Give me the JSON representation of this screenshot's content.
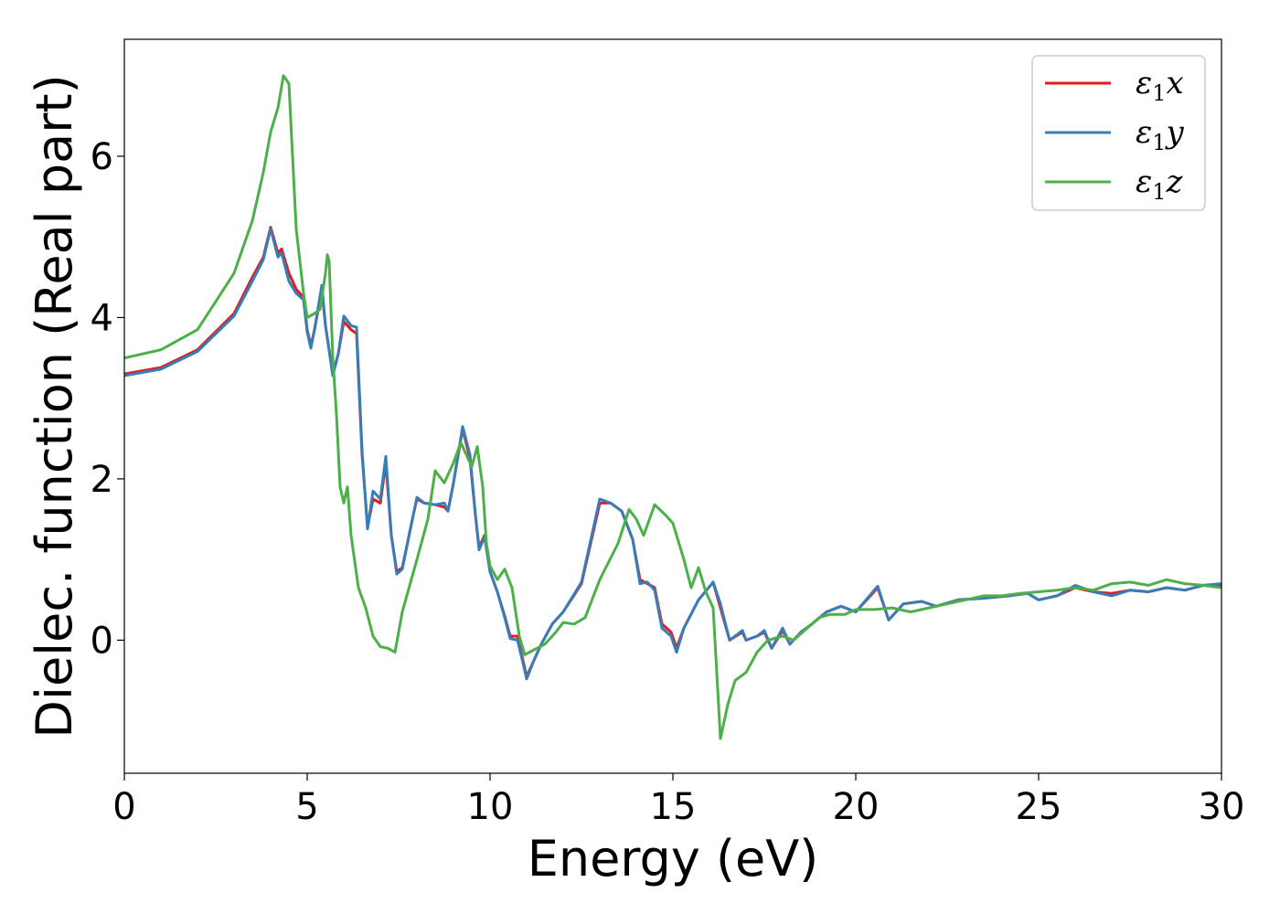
{
  "chart_data": {
    "type": "line",
    "xlabel": "Energy (eV)",
    "ylabel": "Dielec. function (Real part)",
    "xlim": [
      0,
      30
    ],
    "ylim": [
      -1.65,
      7.45
    ],
    "xticks": [
      0,
      5,
      10,
      15,
      20,
      25,
      30
    ],
    "yticks": [
      0,
      2,
      4,
      6
    ],
    "grid": false,
    "legend_position": "top-right",
    "series": [
      {
        "name": "ε1x",
        "color": "#e41a1c",
        "points": [
          [
            0,
            3.3
          ],
          [
            1,
            3.38
          ],
          [
            2,
            3.6
          ],
          [
            3,
            4.05
          ],
          [
            3.5,
            4.5
          ],
          [
            3.8,
            4.75
          ],
          [
            4.0,
            5.12
          ],
          [
            4.2,
            4.8
          ],
          [
            4.3,
            4.85
          ],
          [
            4.5,
            4.55
          ],
          [
            4.7,
            4.35
          ],
          [
            4.9,
            4.25
          ],
          [
            5.0,
            3.85
          ],
          [
            5.1,
            3.65
          ],
          [
            5.2,
            3.85
          ],
          [
            5.4,
            4.35
          ],
          [
            5.5,
            3.9
          ],
          [
            5.7,
            3.3
          ],
          [
            5.85,
            3.55
          ],
          [
            6.0,
            3.95
          ],
          [
            6.2,
            3.85
          ],
          [
            6.35,
            3.8
          ],
          [
            6.5,
            2.3
          ],
          [
            6.65,
            1.4
          ],
          [
            6.8,
            1.75
          ],
          [
            7.0,
            1.7
          ],
          [
            7.15,
            2.2
          ],
          [
            7.3,
            1.3
          ],
          [
            7.45,
            0.85
          ],
          [
            7.6,
            0.9
          ],
          [
            7.9,
            1.55
          ],
          [
            8.0,
            1.75
          ],
          [
            8.2,
            1.7
          ],
          [
            8.5,
            1.68
          ],
          [
            8.75,
            1.65
          ],
          [
            8.85,
            1.6
          ],
          [
            9.0,
            1.95
          ],
          [
            9.25,
            2.62
          ],
          [
            9.45,
            2.25
          ],
          [
            9.6,
            1.55
          ],
          [
            9.7,
            1.15
          ],
          [
            9.85,
            1.3
          ],
          [
            10.0,
            0.85
          ],
          [
            10.2,
            0.6
          ],
          [
            10.4,
            0.3
          ],
          [
            10.55,
            0.05
          ],
          [
            10.75,
            0.05
          ],
          [
            10.9,
            -0.25
          ],
          [
            11.0,
            -0.45
          ],
          [
            11.2,
            -0.25
          ],
          [
            11.4,
            -0.05
          ],
          [
            11.7,
            0.2
          ],
          [
            12.0,
            0.35
          ],
          [
            12.5,
            0.7
          ],
          [
            13.0,
            1.7
          ],
          [
            13.3,
            1.7
          ],
          [
            13.6,
            1.6
          ],
          [
            13.9,
            1.25
          ],
          [
            14.1,
            0.75
          ],
          [
            14.3,
            0.7
          ],
          [
            14.5,
            0.65
          ],
          [
            14.7,
            0.2
          ],
          [
            14.95,
            0.1
          ],
          [
            15.1,
            -0.1
          ],
          [
            15.3,
            0.15
          ],
          [
            15.7,
            0.5
          ],
          [
            16.1,
            0.72
          ],
          [
            16.3,
            0.4
          ],
          [
            16.55,
            0.0
          ],
          [
            16.9,
            0.1
          ],
          [
            17.0,
            0.0
          ],
          [
            17.3,
            0.05
          ],
          [
            17.5,
            0.1
          ],
          [
            17.7,
            -0.1
          ],
          [
            18.0,
            0.12
          ],
          [
            18.2,
            -0.05
          ],
          [
            18.5,
            0.1
          ],
          [
            18.8,
            0.2
          ],
          [
            19.2,
            0.35
          ],
          [
            19.6,
            0.42
          ],
          [
            20.0,
            0.35
          ],
          [
            20.6,
            0.65
          ],
          [
            20.9,
            0.25
          ],
          [
            21.3,
            0.45
          ],
          [
            21.8,
            0.48
          ],
          [
            22.2,
            0.42
          ],
          [
            22.8,
            0.5
          ],
          [
            23.5,
            0.52
          ],
          [
            24.2,
            0.55
          ],
          [
            24.7,
            0.58
          ],
          [
            25.0,
            0.5
          ],
          [
            25.5,
            0.55
          ],
          [
            26.0,
            0.65
          ],
          [
            26.5,
            0.6
          ],
          [
            27.0,
            0.58
          ],
          [
            27.5,
            0.62
          ],
          [
            28.0,
            0.6
          ],
          [
            28.5,
            0.65
          ],
          [
            29.0,
            0.62
          ],
          [
            29.5,
            0.68
          ],
          [
            30.0,
            0.68
          ]
        ]
      },
      {
        "name": "ε1y",
        "color": "#377eb8",
        "points": [
          [
            0,
            3.28
          ],
          [
            1,
            3.36
          ],
          [
            2,
            3.58
          ],
          [
            3,
            4.02
          ],
          [
            3.5,
            4.45
          ],
          [
            3.8,
            4.72
          ],
          [
            4.0,
            5.1
          ],
          [
            4.2,
            4.75
          ],
          [
            4.3,
            4.8
          ],
          [
            4.5,
            4.45
          ],
          [
            4.7,
            4.3
          ],
          [
            4.9,
            4.22
          ],
          [
            5.0,
            3.82
          ],
          [
            5.1,
            3.62
          ],
          [
            5.2,
            3.85
          ],
          [
            5.4,
            4.4
          ],
          [
            5.5,
            3.9
          ],
          [
            5.7,
            3.28
          ],
          [
            5.85,
            3.55
          ],
          [
            6.0,
            4.02
          ],
          [
            6.2,
            3.9
          ],
          [
            6.35,
            3.88
          ],
          [
            6.5,
            2.35
          ],
          [
            6.65,
            1.38
          ],
          [
            6.8,
            1.85
          ],
          [
            7.0,
            1.75
          ],
          [
            7.15,
            2.28
          ],
          [
            7.3,
            1.3
          ],
          [
            7.45,
            0.82
          ],
          [
            7.6,
            0.88
          ],
          [
            7.9,
            1.55
          ],
          [
            8.0,
            1.77
          ],
          [
            8.2,
            1.7
          ],
          [
            8.5,
            1.68
          ],
          [
            8.75,
            1.7
          ],
          [
            8.85,
            1.6
          ],
          [
            9.0,
            1.95
          ],
          [
            9.25,
            2.65
          ],
          [
            9.45,
            2.3
          ],
          [
            9.6,
            1.55
          ],
          [
            9.7,
            1.12
          ],
          [
            9.85,
            1.28
          ],
          [
            10.0,
            0.85
          ],
          [
            10.2,
            0.6
          ],
          [
            10.4,
            0.28
          ],
          [
            10.55,
            0.02
          ],
          [
            10.75,
            0.0
          ],
          [
            10.9,
            -0.28
          ],
          [
            11.0,
            -0.48
          ],
          [
            11.2,
            -0.25
          ],
          [
            11.4,
            -0.05
          ],
          [
            11.7,
            0.2
          ],
          [
            12.0,
            0.35
          ],
          [
            12.5,
            0.72
          ],
          [
            13.0,
            1.75
          ],
          [
            13.3,
            1.7
          ],
          [
            13.6,
            1.6
          ],
          [
            13.9,
            1.25
          ],
          [
            14.1,
            0.7
          ],
          [
            14.3,
            0.72
          ],
          [
            14.5,
            0.62
          ],
          [
            14.7,
            0.15
          ],
          [
            14.95,
            0.05
          ],
          [
            15.1,
            -0.15
          ],
          [
            15.3,
            0.15
          ],
          [
            15.7,
            0.5
          ],
          [
            16.1,
            0.72
          ],
          [
            16.3,
            0.45
          ],
          [
            16.55,
            0.0
          ],
          [
            16.9,
            0.12
          ],
          [
            17.0,
            0.0
          ],
          [
            17.3,
            0.05
          ],
          [
            17.5,
            0.12
          ],
          [
            17.7,
            -0.1
          ],
          [
            18.0,
            0.15
          ],
          [
            18.2,
            -0.05
          ],
          [
            18.5,
            0.1
          ],
          [
            18.8,
            0.2
          ],
          [
            19.2,
            0.35
          ],
          [
            19.6,
            0.42
          ],
          [
            20.0,
            0.35
          ],
          [
            20.6,
            0.67
          ],
          [
            20.9,
            0.25
          ],
          [
            21.3,
            0.45
          ],
          [
            21.8,
            0.48
          ],
          [
            22.2,
            0.42
          ],
          [
            22.8,
            0.5
          ],
          [
            23.5,
            0.52
          ],
          [
            24.2,
            0.55
          ],
          [
            24.7,
            0.58
          ],
          [
            25.0,
            0.5
          ],
          [
            25.5,
            0.55
          ],
          [
            26.0,
            0.68
          ],
          [
            26.5,
            0.6
          ],
          [
            27.0,
            0.55
          ],
          [
            27.5,
            0.62
          ],
          [
            28.0,
            0.6
          ],
          [
            28.5,
            0.65
          ],
          [
            29.0,
            0.62
          ],
          [
            29.5,
            0.68
          ],
          [
            30.0,
            0.7
          ]
        ]
      },
      {
        "name": "ε1z",
        "color": "#4daf4a",
        "points": [
          [
            0,
            3.5
          ],
          [
            1,
            3.6
          ],
          [
            2,
            3.85
          ],
          [
            3,
            4.55
          ],
          [
            3.5,
            5.2
          ],
          [
            3.8,
            5.8
          ],
          [
            4.0,
            6.3
          ],
          [
            4.2,
            6.6
          ],
          [
            4.35,
            7.0
          ],
          [
            4.5,
            6.9
          ],
          [
            4.7,
            5.1
          ],
          [
            4.9,
            4.3
          ],
          [
            5.0,
            4.0
          ],
          [
            5.2,
            4.05
          ],
          [
            5.35,
            4.1
          ],
          [
            5.5,
            4.55
          ],
          [
            5.55,
            4.78
          ],
          [
            5.6,
            4.7
          ],
          [
            5.7,
            3.5
          ],
          [
            5.8,
            2.8
          ],
          [
            5.9,
            1.9
          ],
          [
            6.0,
            1.7
          ],
          [
            6.1,
            1.9
          ],
          [
            6.2,
            1.3
          ],
          [
            6.4,
            0.65
          ],
          [
            6.6,
            0.4
          ],
          [
            6.8,
            0.05
          ],
          [
            7.0,
            -0.08
          ],
          [
            7.2,
            -0.1
          ],
          [
            7.4,
            -0.15
          ],
          [
            7.6,
            0.35
          ],
          [
            8.0,
            1.0
          ],
          [
            8.3,
            1.5
          ],
          [
            8.5,
            2.1
          ],
          [
            8.75,
            1.95
          ],
          [
            9.0,
            2.2
          ],
          [
            9.2,
            2.45
          ],
          [
            9.35,
            2.3
          ],
          [
            9.5,
            2.15
          ],
          [
            9.65,
            2.4
          ],
          [
            9.8,
            1.9
          ],
          [
            9.9,
            1.2
          ],
          [
            10.0,
            0.92
          ],
          [
            10.2,
            0.75
          ],
          [
            10.4,
            0.88
          ],
          [
            10.6,
            0.65
          ],
          [
            10.8,
            0.05
          ],
          [
            10.95,
            -0.18
          ],
          [
            11.2,
            -0.12
          ],
          [
            11.5,
            -0.05
          ],
          [
            11.8,
            0.1
          ],
          [
            12.0,
            0.22
          ],
          [
            12.3,
            0.2
          ],
          [
            12.6,
            0.28
          ],
          [
            13.0,
            0.75
          ],
          [
            13.5,
            1.2
          ],
          [
            13.8,
            1.62
          ],
          [
            14.0,
            1.5
          ],
          [
            14.2,
            1.3
          ],
          [
            14.5,
            1.68
          ],
          [
            14.8,
            1.55
          ],
          [
            15.0,
            1.45
          ],
          [
            15.3,
            1.0
          ],
          [
            15.5,
            0.65
          ],
          [
            15.7,
            0.9
          ],
          [
            15.9,
            0.6
          ],
          [
            16.1,
            0.4
          ],
          [
            16.3,
            -1.22
          ],
          [
            16.5,
            -0.8
          ],
          [
            16.7,
            -0.5
          ],
          [
            17.0,
            -0.4
          ],
          [
            17.3,
            -0.15
          ],
          [
            17.6,
            0.0
          ],
          [
            18.0,
            0.05
          ],
          [
            18.3,
            0.0
          ],
          [
            18.6,
            0.12
          ],
          [
            19.0,
            0.28
          ],
          [
            19.3,
            0.32
          ],
          [
            19.7,
            0.32
          ],
          [
            20.0,
            0.38
          ],
          [
            20.5,
            0.38
          ],
          [
            21.0,
            0.4
          ],
          [
            21.5,
            0.35
          ],
          [
            22.0,
            0.4
          ],
          [
            22.5,
            0.45
          ],
          [
            23.0,
            0.5
          ],
          [
            23.5,
            0.55
          ],
          [
            24.0,
            0.55
          ],
          [
            24.5,
            0.58
          ],
          [
            25.0,
            0.6
          ],
          [
            25.5,
            0.62
          ],
          [
            26.0,
            0.65
          ],
          [
            26.5,
            0.62
          ],
          [
            27.0,
            0.7
          ],
          [
            27.5,
            0.72
          ],
          [
            28.0,
            0.68
          ],
          [
            28.5,
            0.75
          ],
          [
            29.0,
            0.7
          ],
          [
            29.5,
            0.68
          ],
          [
            30.0,
            0.65
          ]
        ]
      }
    ]
  }
}
